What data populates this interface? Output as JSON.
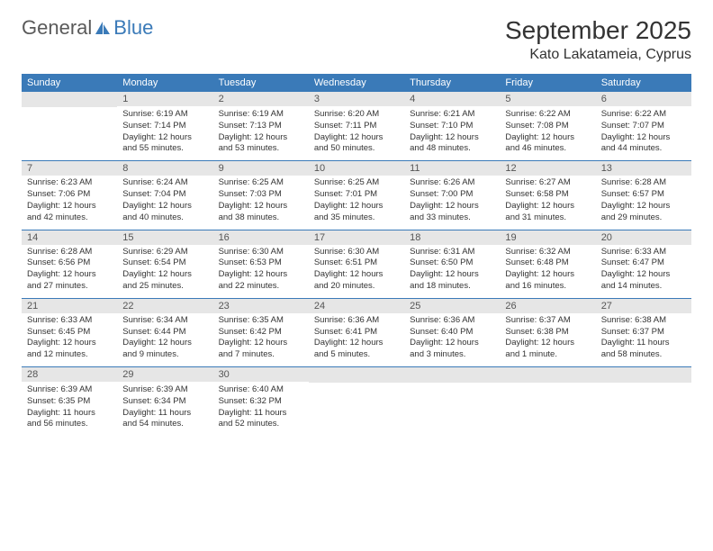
{
  "brand": {
    "text1": "General",
    "text2": "Blue",
    "icon_color": "#3a7ab8"
  },
  "title": "September 2025",
  "location": "Kato Lakatameia, Cyprus",
  "colors": {
    "header_bg": "#3a7ab8",
    "header_fg": "#ffffff",
    "daynum_bg": "#e6e6e6",
    "daynum_fg": "#555555",
    "divider": "#3a7ab8",
    "body_text": "#333333",
    "page_bg": "#ffffff"
  },
  "day_names": [
    "Sunday",
    "Monday",
    "Tuesday",
    "Wednesday",
    "Thursday",
    "Friday",
    "Saturday"
  ],
  "weeks": [
    [
      null,
      {
        "n": "1",
        "sunrise": "6:19 AM",
        "sunset": "7:14 PM",
        "daylight": "12 hours and 55 minutes."
      },
      {
        "n": "2",
        "sunrise": "6:19 AM",
        "sunset": "7:13 PM",
        "daylight": "12 hours and 53 minutes."
      },
      {
        "n": "3",
        "sunrise": "6:20 AM",
        "sunset": "7:11 PM",
        "daylight": "12 hours and 50 minutes."
      },
      {
        "n": "4",
        "sunrise": "6:21 AM",
        "sunset": "7:10 PM",
        "daylight": "12 hours and 48 minutes."
      },
      {
        "n": "5",
        "sunrise": "6:22 AM",
        "sunset": "7:08 PM",
        "daylight": "12 hours and 46 minutes."
      },
      {
        "n": "6",
        "sunrise": "6:22 AM",
        "sunset": "7:07 PM",
        "daylight": "12 hours and 44 minutes."
      }
    ],
    [
      {
        "n": "7",
        "sunrise": "6:23 AM",
        "sunset": "7:06 PM",
        "daylight": "12 hours and 42 minutes."
      },
      {
        "n": "8",
        "sunrise": "6:24 AM",
        "sunset": "7:04 PM",
        "daylight": "12 hours and 40 minutes."
      },
      {
        "n": "9",
        "sunrise": "6:25 AM",
        "sunset": "7:03 PM",
        "daylight": "12 hours and 38 minutes."
      },
      {
        "n": "10",
        "sunrise": "6:25 AM",
        "sunset": "7:01 PM",
        "daylight": "12 hours and 35 minutes."
      },
      {
        "n": "11",
        "sunrise": "6:26 AM",
        "sunset": "7:00 PM",
        "daylight": "12 hours and 33 minutes."
      },
      {
        "n": "12",
        "sunrise": "6:27 AM",
        "sunset": "6:58 PM",
        "daylight": "12 hours and 31 minutes."
      },
      {
        "n": "13",
        "sunrise": "6:28 AM",
        "sunset": "6:57 PM",
        "daylight": "12 hours and 29 minutes."
      }
    ],
    [
      {
        "n": "14",
        "sunrise": "6:28 AM",
        "sunset": "6:56 PM",
        "daylight": "12 hours and 27 minutes."
      },
      {
        "n": "15",
        "sunrise": "6:29 AM",
        "sunset": "6:54 PM",
        "daylight": "12 hours and 25 minutes."
      },
      {
        "n": "16",
        "sunrise": "6:30 AM",
        "sunset": "6:53 PM",
        "daylight": "12 hours and 22 minutes."
      },
      {
        "n": "17",
        "sunrise": "6:30 AM",
        "sunset": "6:51 PM",
        "daylight": "12 hours and 20 minutes."
      },
      {
        "n": "18",
        "sunrise": "6:31 AM",
        "sunset": "6:50 PM",
        "daylight": "12 hours and 18 minutes."
      },
      {
        "n": "19",
        "sunrise": "6:32 AM",
        "sunset": "6:48 PM",
        "daylight": "12 hours and 16 minutes."
      },
      {
        "n": "20",
        "sunrise": "6:33 AM",
        "sunset": "6:47 PM",
        "daylight": "12 hours and 14 minutes."
      }
    ],
    [
      {
        "n": "21",
        "sunrise": "6:33 AM",
        "sunset": "6:45 PM",
        "daylight": "12 hours and 12 minutes."
      },
      {
        "n": "22",
        "sunrise": "6:34 AM",
        "sunset": "6:44 PM",
        "daylight": "12 hours and 9 minutes."
      },
      {
        "n": "23",
        "sunrise": "6:35 AM",
        "sunset": "6:42 PM",
        "daylight": "12 hours and 7 minutes."
      },
      {
        "n": "24",
        "sunrise": "6:36 AM",
        "sunset": "6:41 PM",
        "daylight": "12 hours and 5 minutes."
      },
      {
        "n": "25",
        "sunrise": "6:36 AM",
        "sunset": "6:40 PM",
        "daylight": "12 hours and 3 minutes."
      },
      {
        "n": "26",
        "sunrise": "6:37 AM",
        "sunset": "6:38 PM",
        "daylight": "12 hours and 1 minute."
      },
      {
        "n": "27",
        "sunrise": "6:38 AM",
        "sunset": "6:37 PM",
        "daylight": "11 hours and 58 minutes."
      }
    ],
    [
      {
        "n": "28",
        "sunrise": "6:39 AM",
        "sunset": "6:35 PM",
        "daylight": "11 hours and 56 minutes."
      },
      {
        "n": "29",
        "sunrise": "6:39 AM",
        "sunset": "6:34 PM",
        "daylight": "11 hours and 54 minutes."
      },
      {
        "n": "30",
        "sunrise": "6:40 AM",
        "sunset": "6:32 PM",
        "daylight": "11 hours and 52 minutes."
      },
      null,
      null,
      null,
      null
    ]
  ],
  "labels": {
    "sunrise_prefix": "Sunrise: ",
    "sunset_prefix": "Sunset: ",
    "daylight_prefix": "Daylight: "
  }
}
